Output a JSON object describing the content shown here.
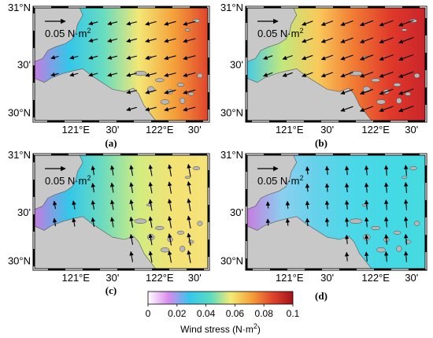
{
  "panels": [
    {
      "label": "(a)",
      "scale_text": "0.05 N·m",
      "scale_sup": "2",
      "direction_deg": 195,
      "magnitude": "medium",
      "colors": [
        "#c87ae0",
        "#33c7ea",
        "#68dcc0",
        "#f3e775",
        "#f4a13a",
        "#e0432c"
      ]
    },
    {
      "label": "(b)",
      "scale_text": "0.05 N·m",
      "scale_sup": "2",
      "direction_deg": 200,
      "magnitude": "high",
      "colors": [
        "#44c9e6",
        "#c2e87d",
        "#f9c95a",
        "#f07a33",
        "#e03a2a",
        "#c9242a"
      ]
    },
    {
      "label": "(c)",
      "scale_text": "0.05 N·m",
      "scale_sup": "2",
      "direction_deg": 100,
      "magnitude": "medium",
      "colors": [
        "#c87ae0",
        "#33c7ea",
        "#6fdcbc",
        "#d2ec80",
        "#f4e274",
        "#f5e27a"
      ]
    },
    {
      "label": "(d)",
      "scale_text": "0.05 N·m",
      "scale_sup": "2",
      "direction_deg": 95,
      "magnitude": "low",
      "colors": [
        "#c87ae0",
        "#8ad0ef",
        "#62d2ea",
        "#4bd8e8",
        "#44d9e4",
        "#46dbe0"
      ]
    }
  ],
  "axes": {
    "y_ticks": [
      "31°N",
      "30'",
      "30°N"
    ],
    "x_ticks": [
      "121°E",
      "30'",
      "122°E",
      "30'"
    ]
  },
  "colorbar": {
    "title": "Wind stress (N·m",
    "title_sup": "2",
    "title_close": ")",
    "ticks": [
      "0",
      "0.02",
      "0.04",
      "0.06",
      "0.08",
      "0.1"
    ],
    "colors": [
      "#ffffff",
      "#d98aed",
      "#35c6ed",
      "#58dcc2",
      "#f4ea73",
      "#f5a23a",
      "#e0462c",
      "#a51219"
    ]
  },
  "land_color": "#c8c8c8",
  "island_color": "#b8b8b8"
}
